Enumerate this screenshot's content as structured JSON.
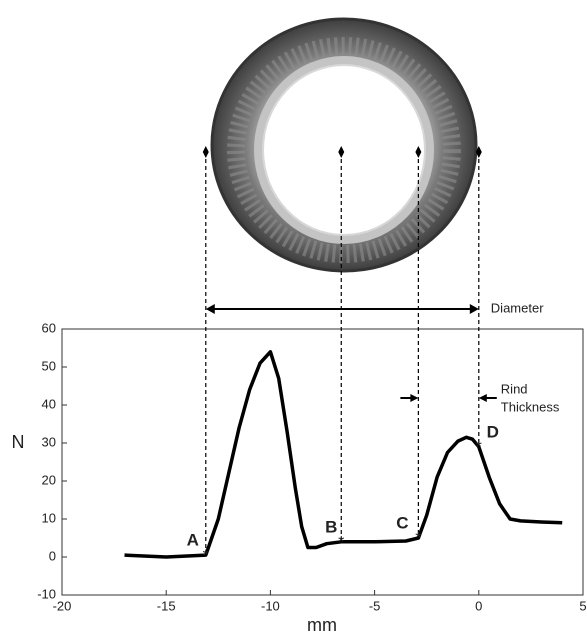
{
  "chart_data": {
    "type": "line",
    "x_label": "mm",
    "y_label": "N",
    "x": [
      -17,
      -15,
      -13.1,
      -12.5,
      -12,
      -11.5,
      -11,
      -10.5,
      -10,
      -9.6,
      -9.2,
      -8.8,
      -8.5,
      -8.2,
      -7.8,
      -7.3,
      -6.6,
      -5,
      -3.5,
      -2.9,
      -2.5,
      -2,
      -1.5,
      -1,
      -0.6,
      -0.3,
      0,
      0.5,
      1,
      1.5,
      2,
      3,
      4
    ],
    "values": [
      0.5,
      0,
      0.5,
      10,
      22,
      34,
      44,
      51,
      54,
      47,
      33,
      18,
      8,
      2.5,
      2.5,
      3.5,
      4,
      4,
      4.2,
      5,
      11,
      21,
      27.5,
      30.5,
      31.5,
      31,
      29,
      21,
      14,
      10,
      9.5,
      9.2,
      9
    ],
    "color": "#000000",
    "xlim": [
      -20,
      5
    ],
    "ylim": [
      -10,
      60
    ],
    "xticks": [
      -20,
      -15,
      -10,
      -5,
      0,
      5
    ],
    "yticks": [
      -10,
      0,
      10,
      20,
      30,
      40,
      50,
      60
    ],
    "annotations": [
      {
        "text": "A",
        "x": -13.1,
        "y": 0.5
      },
      {
        "text": "B",
        "x": -6.6,
        "y": 4
      },
      {
        "text": "C",
        "x": -2.9,
        "y": 5
      },
      {
        "text": "D",
        "x": 0,
        "y": 29
      }
    ],
    "diameter_label": "Diameter",
    "rind_label": [
      "Rind",
      "Thickness"
    ]
  }
}
